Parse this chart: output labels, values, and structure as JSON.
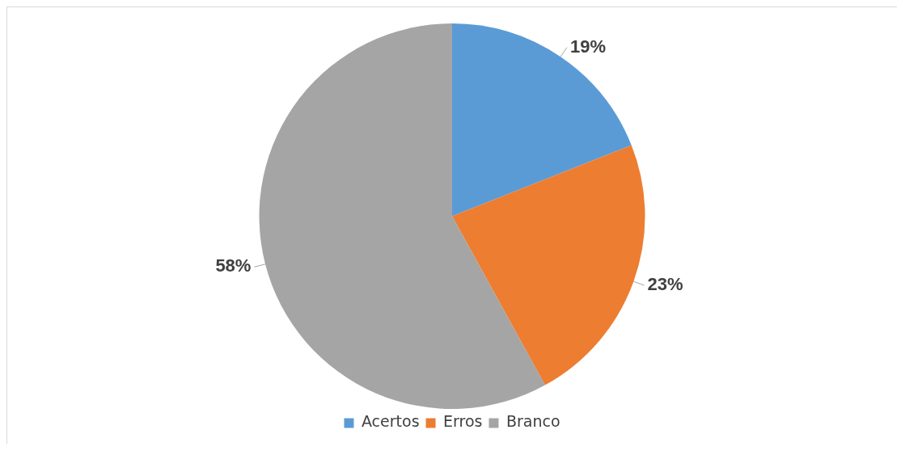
{
  "chart_data": {
    "type": "pie",
    "categories": [
      "Acertos",
      "Erros",
      "Branco"
    ],
    "values": [
      19,
      23,
      58
    ],
    "value_labels": [
      "19%",
      "23%",
      "58%"
    ],
    "colors": [
      "#5b9bd5",
      "#ed7d31",
      "#a5a5a5"
    ],
    "legend": "bottom"
  }
}
